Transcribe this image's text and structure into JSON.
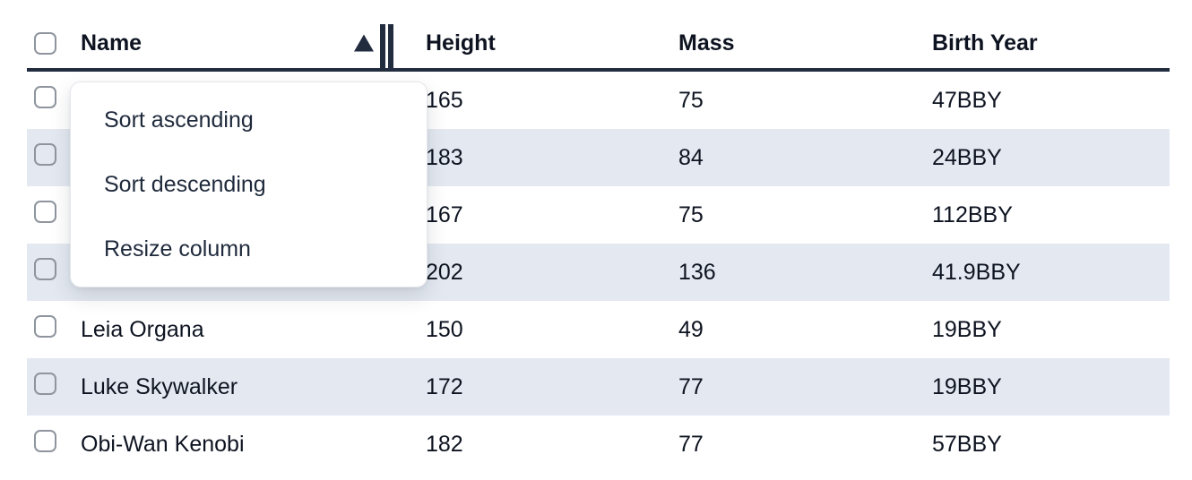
{
  "colors": {
    "dark": "#212c3f",
    "stripe": "#e4e9f1",
    "text": "#0d1320",
    "menu-text": "#1e293b",
    "menu-border": "#e5e7eb",
    "checkbox-border": "#8f959e"
  },
  "table": {
    "columns": [
      {
        "label": "Name",
        "sort": "ascending"
      },
      {
        "label": "Height"
      },
      {
        "label": "Mass"
      },
      {
        "label": "Birth Year"
      }
    ],
    "rows": [
      {
        "name": "",
        "height": "165",
        "mass": "75",
        "birth_year": "47BBY"
      },
      {
        "name": "",
        "height": "183",
        "mass": "84",
        "birth_year": "24BBY"
      },
      {
        "name": "",
        "height": "167",
        "mass": "75",
        "birth_year": "112BBY"
      },
      {
        "name": "",
        "height": "202",
        "mass": "136",
        "birth_year": "41.9BBY"
      },
      {
        "name": "Leia Organa",
        "height": "150",
        "mass": "49",
        "birth_year": "19BBY"
      },
      {
        "name": "Luke Skywalker",
        "height": "172",
        "mass": "77",
        "birth_year": "19BBY"
      },
      {
        "name": "Obi-Wan Kenobi",
        "height": "182",
        "mass": "77",
        "birth_year": "57BBY"
      }
    ]
  },
  "context_menu": {
    "items": [
      {
        "label": "Sort ascending"
      },
      {
        "label": "Sort descending"
      },
      {
        "label": "Resize column"
      }
    ]
  }
}
